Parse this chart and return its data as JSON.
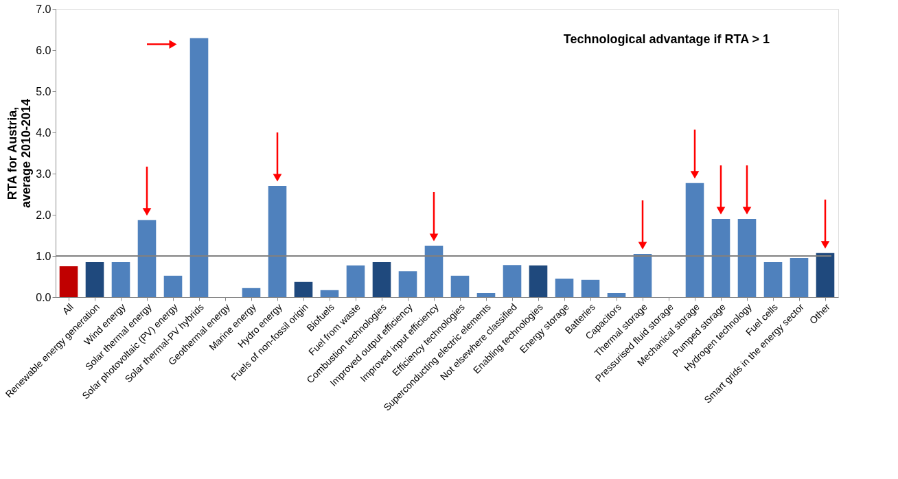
{
  "chart_data": {
    "type": "bar",
    "ylabel": "RTA for Austria, average 2010-2014",
    "categories": [
      "All",
      "Renewable energy generation",
      "Wind energy",
      "Solar thermal energy",
      "Solar photovoltaic (PV) energy",
      "Solar thermal-PV hybrids",
      "Geothermal energy",
      "Marine energy",
      "Hydro energy",
      "Fuels of non-fossil origin",
      "Biofuels",
      "Fuel from waste",
      "Combustion technologies",
      "Improved output efficiency",
      "Improved input efficiency",
      "Efficiency technologies",
      "Superconducting electric elements",
      "Not elsewhere classified",
      "Enabling technologies",
      "Energy storage",
      "Batteries",
      "Capacitors",
      "Thermal storage",
      "Pressurised fluid storage",
      "Mechanical storage",
      "Pumped storage",
      "Hydrogen technology",
      "Fuel cells",
      "Smart grids in the energy sector",
      "Other"
    ],
    "values": [
      0.75,
      0.85,
      0.85,
      1.87,
      0.52,
      6.29,
      0,
      0.22,
      2.7,
      0.37,
      0.17,
      0.77,
      0.85,
      0.63,
      1.25,
      0.52,
      0.1,
      0.78,
      0.77,
      0.45,
      0.42,
      0.1,
      1.05,
      0,
      2.77,
      1.9,
      1.9,
      0.85,
      0.95,
      1.07
    ],
    "colors": [
      "#c00000",
      "#1f497d",
      "#4f81bd",
      "#4f81bd",
      "#4f81bd",
      "#4f81bd",
      "#4f81bd",
      "#4f81bd",
      "#4f81bd",
      "#1f497d",
      "#4f81bd",
      "#4f81bd",
      "#1f497d",
      "#4f81bd",
      "#4f81bd",
      "#4f81bd",
      "#4f81bd",
      "#4f81bd",
      "#1f497d",
      "#4f81bd",
      "#4f81bd",
      "#4f81bd",
      "#4f81bd",
      "#4f81bd",
      "#4f81bd",
      "#4f81bd",
      "#4f81bd",
      "#4f81bd",
      "#4f81bd",
      "#1f497d"
    ],
    "ylim": [
      0,
      7
    ],
    "yticks": [
      {
        "value": 0,
        "label": "0.0"
      },
      {
        "value": 1,
        "label": "1.0"
      },
      {
        "value": 2,
        "label": "2.0"
      },
      {
        "value": 3,
        "label": "3.0"
      },
      {
        "value": 4,
        "label": "4.0"
      },
      {
        "value": 5,
        "label": "5.0"
      },
      {
        "value": 6,
        "label": "6.0"
      },
      {
        "value": 7,
        "label": "7.0"
      }
    ],
    "ref_lines": [
      {
        "axis": "y",
        "value": 1,
        "label": null,
        "color": "#808080"
      }
    ],
    "annotations": [
      "Technological advantage if RTA > 1"
    ],
    "grid": false
  }
}
